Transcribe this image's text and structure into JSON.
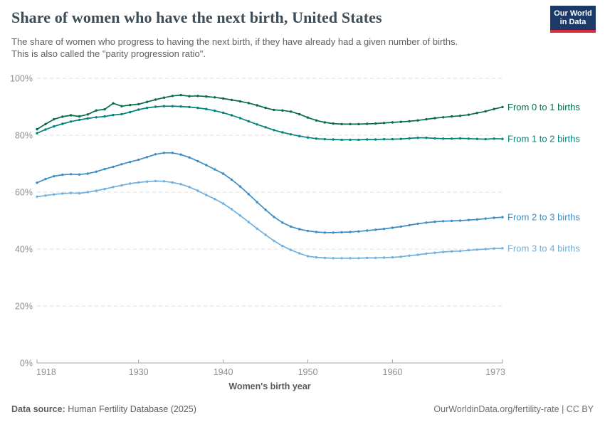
{
  "header": {
    "title": "Share of women who have the next birth, United States",
    "subtitle_line1": "The share of women who progress to having the next birth, if they have already had a given number of births.",
    "subtitle_line2": "This is also called the \"parity progression ratio\".",
    "logo": {
      "line1": "Our World",
      "line2": "in Data"
    }
  },
  "chart_data": {
    "type": "line",
    "title": "Share of women who have the next birth, United States",
    "xlabel": "Women's birth year",
    "ylabel": "",
    "xlim": [
      1918,
      1973
    ],
    "ylim": [
      0,
      100
    ],
    "grid": "horizontal-dashed",
    "legend_position": "right-end-labels",
    "x_ticks": [
      1918,
      1930,
      1940,
      1950,
      1960,
      1973
    ],
    "y_ticks": [
      0,
      20,
      40,
      60,
      80,
      100
    ],
    "y_tick_suffix": "%",
    "x": [
      1918,
      1919,
      1920,
      1921,
      1922,
      1923,
      1924,
      1925,
      1926,
      1927,
      1928,
      1929,
      1930,
      1931,
      1932,
      1933,
      1934,
      1935,
      1936,
      1937,
      1938,
      1939,
      1940,
      1941,
      1942,
      1943,
      1944,
      1945,
      1946,
      1947,
      1948,
      1949,
      1950,
      1951,
      1952,
      1953,
      1954,
      1955,
      1956,
      1957,
      1958,
      1959,
      1960,
      1961,
      1962,
      1963,
      1964,
      1965,
      1966,
      1967,
      1968,
      1969,
      1970,
      1971,
      1972,
      1973
    ],
    "series": [
      {
        "name": "From 0 to 1 births",
        "color": "#086b4b",
        "values": [
          82.1,
          83.9,
          85.6,
          86.5,
          87.0,
          86.6,
          87.3,
          88.7,
          89.1,
          91.2,
          90.2,
          90.6,
          90.9,
          91.7,
          92.5,
          93.2,
          93.8,
          94.1,
          93.7,
          93.8,
          93.6,
          93.3,
          92.9,
          92.4,
          91.9,
          91.3,
          90.5,
          89.6,
          88.9,
          88.7,
          88.3,
          87.4,
          86.2,
          85.2,
          84.5,
          84.1,
          83.9,
          83.9,
          83.9,
          84.0,
          84.1,
          84.3,
          84.5,
          84.7,
          84.9,
          85.2,
          85.6,
          86.0,
          86.3,
          86.6,
          86.8,
          87.2,
          87.8,
          88.4,
          89.2,
          89.9
        ]
      },
      {
        "name": "From 1 to 2 births",
        "color": "#00847e",
        "values": [
          80.7,
          82.0,
          83.1,
          84.0,
          84.8,
          85.4,
          85.9,
          86.3,
          86.6,
          87.1,
          87.4,
          88.1,
          89.0,
          89.6,
          90.0,
          90.2,
          90.2,
          90.1,
          89.9,
          89.6,
          89.2,
          88.6,
          87.9,
          87.0,
          86.0,
          84.9,
          83.8,
          82.8,
          81.8,
          81.0,
          80.3,
          79.7,
          79.2,
          78.8,
          78.6,
          78.5,
          78.4,
          78.4,
          78.4,
          78.5,
          78.5,
          78.6,
          78.6,
          78.7,
          78.9,
          79.1,
          79.1,
          78.9,
          78.8,
          78.8,
          78.9,
          78.8,
          78.7,
          78.6,
          78.8,
          78.7
        ]
      },
      {
        "name": "From 2 to 3 births",
        "color": "#3d8ec4",
        "values": [
          63.3,
          64.6,
          65.6,
          66.1,
          66.3,
          66.2,
          66.5,
          67.2,
          68.1,
          68.9,
          69.8,
          70.6,
          71.4,
          72.3,
          73.3,
          73.8,
          73.8,
          73.2,
          72.2,
          70.9,
          69.5,
          68.0,
          66.5,
          64.4,
          62.0,
          59.3,
          56.5,
          53.8,
          51.3,
          49.3,
          47.9,
          47.0,
          46.4,
          46.0,
          45.8,
          45.8,
          45.9,
          46.0,
          46.2,
          46.5,
          46.8,
          47.1,
          47.5,
          47.9,
          48.4,
          48.9,
          49.3,
          49.6,
          49.8,
          49.9,
          50.0,
          50.2,
          50.4,
          50.7,
          51.0,
          51.2
        ]
      },
      {
        "name": "From 3 to 4 births",
        "color": "#6fb0de",
        "values": [
          58.4,
          58.8,
          59.2,
          59.5,
          59.7,
          59.6,
          60.0,
          60.5,
          61.1,
          61.8,
          62.4,
          63.0,
          63.4,
          63.7,
          63.9,
          63.8,
          63.4,
          62.8,
          61.8,
          60.5,
          59.0,
          57.6,
          56.0,
          54.0,
          51.8,
          49.5,
          47.2,
          45.0,
          42.9,
          41.1,
          39.7,
          38.5,
          37.5,
          37.1,
          36.9,
          36.8,
          36.8,
          36.8,
          36.8,
          36.9,
          36.9,
          37.0,
          37.1,
          37.3,
          37.7,
          38.0,
          38.4,
          38.7,
          39.0,
          39.2,
          39.3,
          39.6,
          39.8,
          40.0,
          40.2,
          40.3
        ]
      }
    ]
  },
  "footer": {
    "datasource_label": "Data source:",
    "datasource_value": "Human Fertility Database (2025)",
    "credit": "OurWorldinData.org/fertility-rate | CC BY"
  }
}
